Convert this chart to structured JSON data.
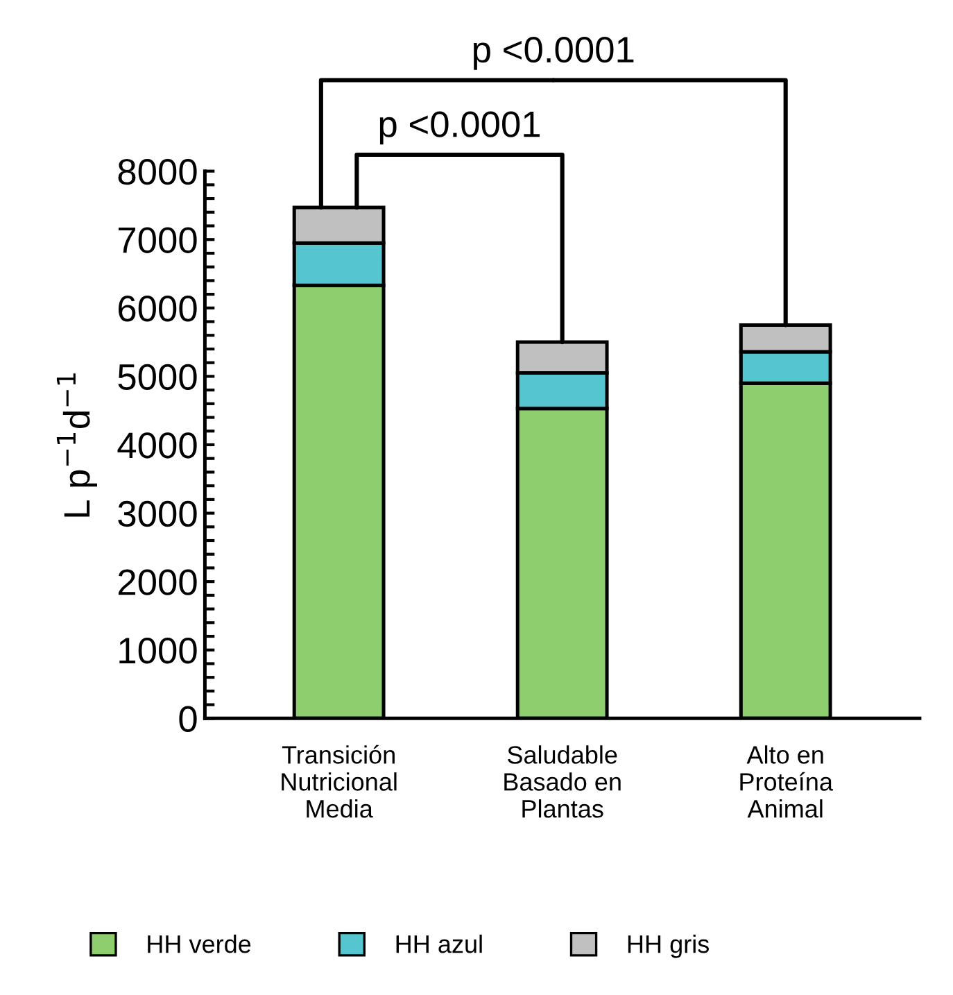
{
  "chart_data": {
    "type": "bar",
    "stacked": true,
    "ylabel": "L p$^{−1}$d$^{−1}$",
    "categories": [
      "Transición\nNutricional\nMedia",
      "Saludable\nBasado en\nPlantas",
      "Alto en\nProteína\nAnimal"
    ],
    "series": [
      {
        "name": "HH verde",
        "color": "#8fce6f",
        "values": [
          6330,
          4530,
          4900
        ]
      },
      {
        "name": "HH azul",
        "color": "#55c6d0",
        "values": [
          620,
          520,
          460
        ]
      },
      {
        "name": "HH gris",
        "color": "#c0c0c0",
        "values": [
          520,
          450,
          390
        ]
      }
    ],
    "ylim": [
      0,
      8000
    ],
    "yticks": [
      0,
      {
        "value": 200,
        "label": null
      },
      {
        "value": 400,
        "label": null
      },
      {
        "value": 600,
        "label": null
      },
      {
        "value": 800,
        "label": null
      },
      1000,
      {
        "value": 1200,
        "label": null
      },
      {
        "value": 1400,
        "label": null
      },
      {
        "value": 1600,
        "label": null
      },
      {
        "value": 1800,
        "label": null
      },
      2000,
      {
        "value": 2200,
        "label": null
      },
      {
        "value": 2400,
        "label": null
      },
      {
        "value": 2600,
        "label": null
      },
      {
        "value": 2800,
        "label": null
      },
      3000,
      {
        "value": 3200,
        "label": null
      },
      {
        "value": 3400,
        "label": null
      },
      {
        "value": 3600,
        "label": null
      },
      {
        "value": 3800,
        "label": null
      },
      4000,
      {
        "value": 4200,
        "label": null
      },
      {
        "value": 4400,
        "label": null
      },
      {
        "value": 4600,
        "label": null
      },
      {
        "value": 4800,
        "label": null
      },
      5000,
      {
        "value": 5200,
        "label": null
      },
      {
        "value": 5400,
        "label": null
      },
      {
        "value": 5600,
        "label": null
      },
      {
        "value": 5800,
        "label": null
      },
      6000,
      {
        "value": 6200,
        "label": null
      },
      {
        "value": 6400,
        "label": null
      },
      {
        "value": 6600,
        "label": null
      },
      {
        "value": 6800,
        "label": null
      },
      7000,
      {
        "value": 7200,
        "label": null
      },
      {
        "value": 7400,
        "label": null
      },
      {
        "value": 7600,
        "label": null
      },
      {
        "value": 7800,
        "label": null
      },
      8000
    ],
    "annotations": [
      {
        "text": "p <0.0001",
        "x": "Alto en\nProteína\nAnimal",
        "y": 5750
      },
      {
        "text": "p <0.0001",
        "x": "Saludable\nBasado en\nPlantas",
        "y": 5500
      }
    ],
    "grid": false,
    "legend": "bottom"
  }
}
